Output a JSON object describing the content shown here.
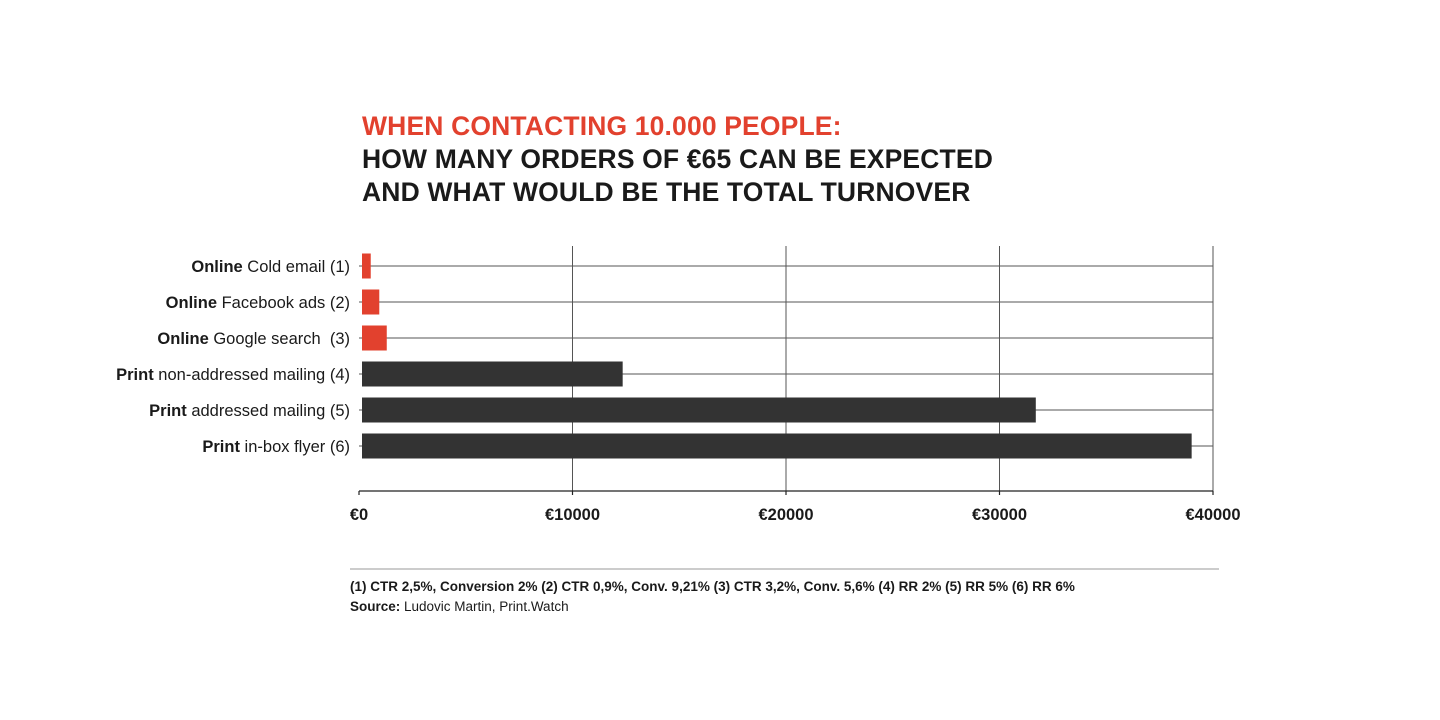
{
  "title": {
    "line1": "WHEN CONTACTING 10.000 PEOPLE:",
    "line2": "HOW MANY ORDERS OF €65 CAN BE EXPECTED",
    "line3": "AND WHAT WOULD BE THE TOTAL TURNOVER"
  },
  "colors": {
    "accent": "#e2412e",
    "dark": "#333333",
    "text": "#1a1a1a",
    "grid": "#555555"
  },
  "chart_data": {
    "type": "bar",
    "orientation": "horizontal",
    "categories": [
      {
        "bold": "Online",
        "rest": " Cold email (1)",
        "group": "online"
      },
      {
        "bold": "Online",
        "rest": " Facebook ads (2)",
        "group": "online"
      },
      {
        "bold": "Online",
        "rest": " Google search  (3)",
        "group": "online"
      },
      {
        "bold": "Print",
        "rest": " non-addressed mailing (4)",
        "group": "print"
      },
      {
        "bold": "Print",
        "rest": " addressed mailing (5)",
        "group": "print"
      },
      {
        "bold": "Print",
        "rest": " in-box flyer (6)",
        "group": "print"
      }
    ],
    "values": [
      550,
      950,
      1300,
      12350,
      31700,
      39000
    ],
    "xlim": [
      0,
      40000
    ],
    "ticks": [
      {
        "value": 0,
        "label": "€0"
      },
      {
        "value": 10000,
        "label": "€10000"
      },
      {
        "value": 20000,
        "label": "€20000"
      },
      {
        "value": 30000,
        "label": "€30000"
      },
      {
        "value": 40000,
        "label": "€40000"
      }
    ],
    "grid": true
  },
  "footnote": {
    "notes": "(1) CTR 2,5%, Conversion 2% (2) CTR 0,9%, Conv. 9,21% (3) CTR 3,2%, Conv. 5,6% (4) RR 2% (5) RR 5% (6) RR 6%",
    "source_label": "Source:",
    "source_text": " Ludovic Martin, Print.Watch"
  }
}
